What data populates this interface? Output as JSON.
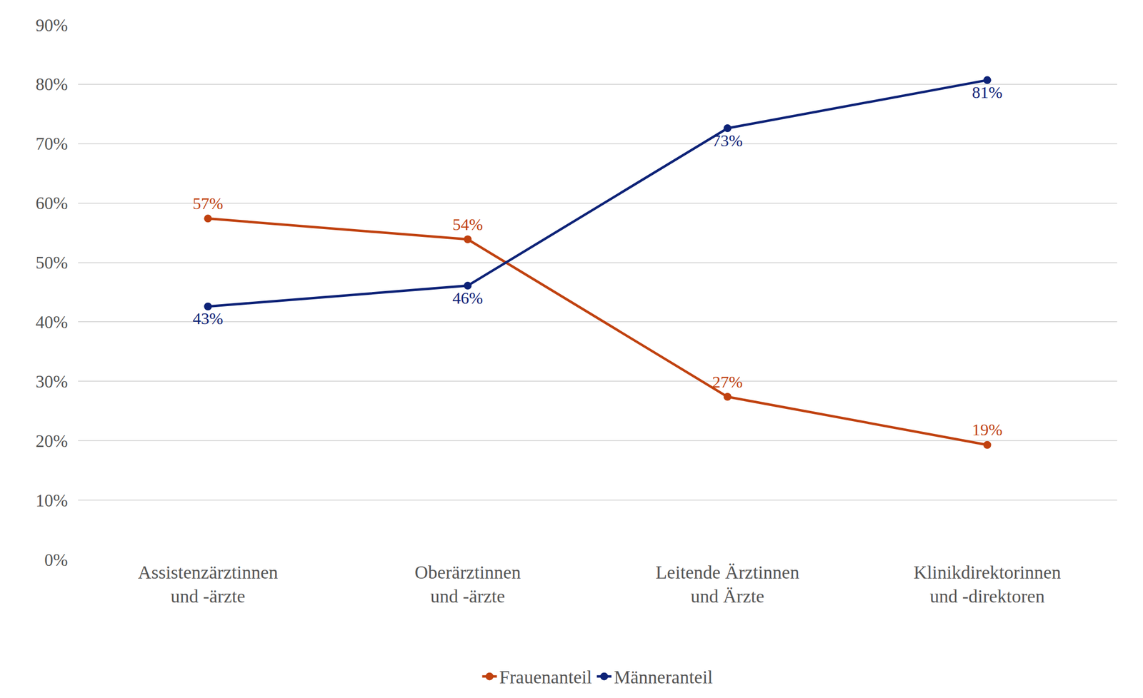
{
  "chart_data": {
    "type": "line",
    "categories": [
      "Assistenzärztinnen\nund -ärzte",
      "Oberärztinnen\nund -ärzte",
      "Leitende Ärztinnen\nund Ärzte",
      "Klinikdirektorinnen\nund -direktoren"
    ],
    "series": [
      {
        "name": "Frauenanteil",
        "color": "#c0410f",
        "values": [
          57.4,
          53.9,
          27.4,
          19.3
        ],
        "value_labels": [
          "57%",
          "54%",
          "27%",
          "19%"
        ],
        "marker": "circle"
      },
      {
        "name": "Männeranteil",
        "color": "#0d2277",
        "values": [
          42.6,
          46.1,
          72.6,
          80.7
        ],
        "value_labels": [
          "43%",
          "46%",
          "73%",
          "81%"
        ],
        "marker": "circle"
      }
    ],
    "ylim": [
      0,
      90
    ],
    "yticks": [
      {
        "value": 0,
        "label": "0%"
      },
      {
        "value": 10,
        "label": "10%"
      },
      {
        "value": 20,
        "label": "20%"
      },
      {
        "value": 30,
        "label": "30%"
      },
      {
        "value": 40,
        "label": "40%"
      },
      {
        "value": 50,
        "label": "50%"
      },
      {
        "value": 60,
        "label": "60%"
      },
      {
        "value": 70,
        "label": "70%"
      },
      {
        "value": 80,
        "label": "80%"
      },
      {
        "value": 90,
        "label": "90%"
      }
    ],
    "grid": true,
    "legend": "bottom",
    "data_labels": true
  }
}
